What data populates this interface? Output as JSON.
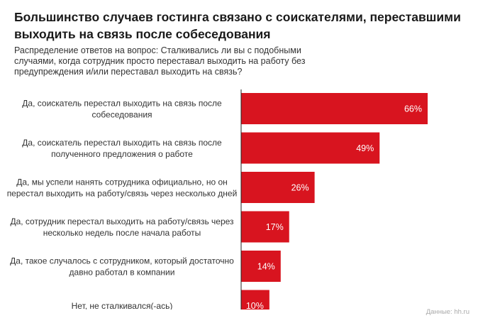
{
  "title": "Большинство случаев гостинга связано с соискателями, переставшими выходить на связь после собеседования",
  "subtitle": "Распределение ответов на вопрос: Сталкивались ли вы с подобными случаями, когда сотрудник просто переставал выходить на работу без предупреждения и/или переставал выходить на связь?",
  "source": "Данные: hh.ru",
  "colors": {
    "bar": "#d8141f",
    "axis": "#222222",
    "bar_text": "#ffffff"
  },
  "chart_data": {
    "type": "bar",
    "orientation": "horizontal",
    "title": "Большинство случаев гостинга связано с соискателями, переставшими выходить на связь после собеседования",
    "xlim": [
      0,
      100
    ],
    "categories": [
      [
        "Да, соискатель перестал выходить на связь после",
        "собеседования"
      ],
      [
        "Да, соискатель перестал выходить на связь после",
        "полученного предложения о работе"
      ],
      [
        "Да, мы успели нанять сотрудника официально, но он",
        "перестал выходить на работу/связь через несколько дней"
      ],
      [
        "Да, сотрудник перестал выходить на работу/связь через",
        "несколько недель после начала работы"
      ],
      [
        "Да, такое случалось с сотрудником, который достаточно",
        "давно работал в компании"
      ],
      [
        "Нет, не сталкивался(-ась)"
      ]
    ],
    "values": [
      66,
      49,
      26,
      17,
      14,
      10
    ],
    "value_labels": [
      "66%",
      "49%",
      "26%",
      "17%",
      "14%",
      "10%"
    ]
  }
}
